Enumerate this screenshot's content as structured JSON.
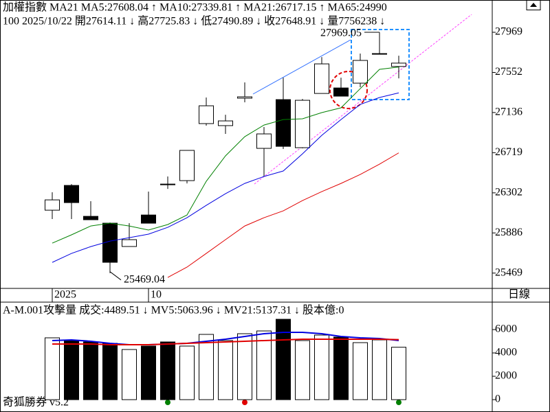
{
  "chart_data": [
    {
      "type": "candlestick",
      "title": "加權指數 MA21",
      "info": "100 2025/10/22 開27614.11 ↓ 高27725.83 ↓ 低27490.89 ↓ 收27648.91 ↓ 量7756238 ↓",
      "categories": [
        "2025",
        null,
        null,
        null,
        null,
        "10",
        null,
        null,
        null,
        null,
        null,
        null,
        null,
        null,
        null,
        null,
        null,
        null,
        null
      ],
      "open": [
        26122,
        26379,
        26058,
        25987,
        25745,
        26072,
        26393,
        26429,
        27021,
        27000,
        27285,
        26764,
        27270,
        26771,
        27334,
        27391,
        27441,
        27741,
        27614.11
      ],
      "high": [
        26308,
        26393,
        26215,
        25994,
        25987,
        26315,
        26472,
        26743,
        27292,
        27113,
        27449,
        26985,
        27498,
        27277,
        27712,
        27498,
        27748,
        27969.05,
        27725.83
      ],
      "low": [
        26030,
        26030,
        26023,
        25469.04,
        25745,
        25987,
        26343,
        26400,
        27000,
        26914,
        27242,
        26472,
        26757,
        26764,
        27334,
        27306,
        27399,
        27741,
        27490.89
      ],
      "close": [
        26229,
        26201,
        26023,
        25581,
        25816,
        25987,
        26386,
        26743,
        27206,
        27049,
        27299,
        26914,
        26785,
        27263,
        27641,
        27306,
        27677,
        27748,
        27648.91
      ],
      "series": [
        {
          "name": "MA5:27608.04",
          "trend": "↑",
          "color": "#008000",
          "values": [
            25780,
            25866,
            25958,
            25987,
            25958,
            25916,
            25973,
            26072,
            26422,
            26686,
            26885,
            27006,
            27063,
            27071,
            27135,
            27185,
            27384,
            27584,
            27608.04
          ]
        },
        {
          "name": "MA10:27339.81",
          "trend": "↑",
          "color": "#0000e0",
          "values": [
            25580,
            25673,
            25744,
            25801,
            25837,
            25873,
            25944,
            26044,
            26172,
            26293,
            26400,
            26472,
            26529,
            26707,
            26899,
            27063,
            27220,
            27292,
            27339.81
          ]
        },
        {
          "name": "MA21:26717.15",
          "trend": "↑",
          "color": "#e00000",
          "values": [
            null,
            null,
            null,
            null,
            null,
            null,
            25424,
            25531,
            25673,
            25816,
            25958,
            26044,
            26115,
            26222,
            26315,
            26400,
            26493,
            26600,
            26717.15
          ]
        }
      ],
      "extra_legend": {
        "name": "MA65:24990",
        "color": "#ff00ff"
      },
      "ylim": [
        25310,
        28290
      ],
      "yticks": [
        25469,
        25886,
        26302,
        26719,
        27136,
        27552,
        27969
      ],
      "period": "日線"
    },
    {
      "type": "bar",
      "title": "A-M.001攻擊量",
      "series": [
        {
          "name": "成交:4489.51",
          "trend": "↓",
          "color": "#008000",
          "values": [
            5294,
            5059,
            4941,
            4824,
            4294,
            4588,
            4941,
            4588,
            5588,
            5059,
            5647,
            5882,
            6882,
            5059,
            5529,
            5353,
            4882,
            5118,
            4489.51
          ]
        },
        {
          "name": "MV5:5063.96",
          "trend": "↓",
          "color": "#0000e0",
          "values": [
            5059,
            5118,
            5000,
            4824,
            4706,
            4706,
            4765,
            4824,
            5000,
            5176,
            5412,
            5647,
            5765,
            5765,
            5647,
            5412,
            5294,
            5235,
            5063.96
          ]
        },
        {
          "name": "MV21:5137.31",
          "trend": "↓",
          "color": "#e00000",
          "values": [
            4765,
            4765,
            4765,
            4706,
            4706,
            4706,
            4765,
            4824,
            4882,
            4941,
            5000,
            5059,
            5118,
            5176,
            5176,
            5176,
            5176,
            5176,
            5137.31
          ]
        }
      ],
      "extra_legend": {
        "name": "股本億:0",
        "color": "#ff00ff"
      },
      "ylim": [
        -940,
        8350
      ],
      "yticks": [
        0,
        2000,
        4000,
        6000
      ],
      "footer": "奇狐勝券 v5.2"
    }
  ]
}
